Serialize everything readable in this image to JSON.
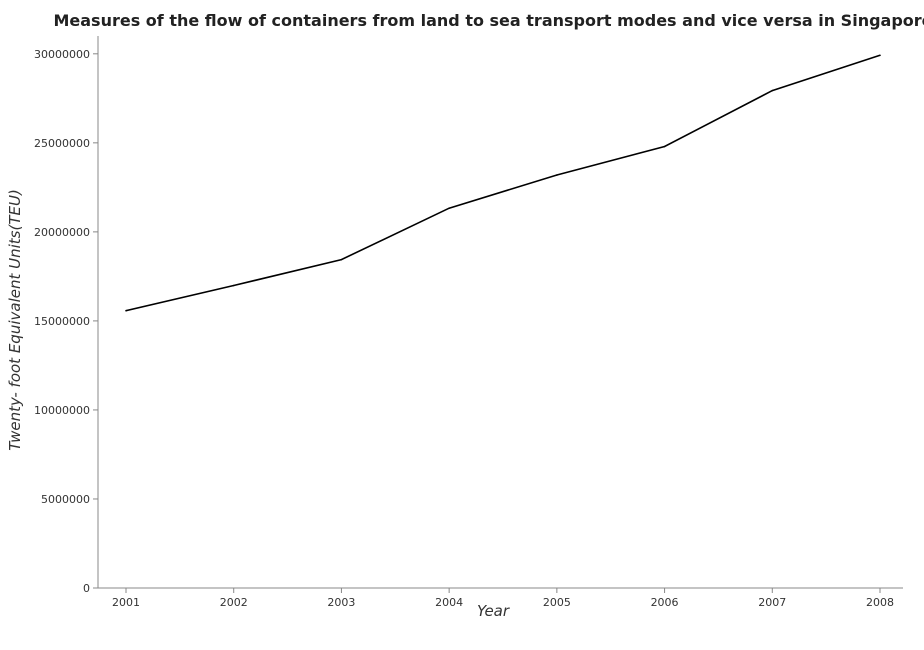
{
  "chart_data": {
    "type": "line",
    "title": "Measures of the flow of containers from land to sea transport modes and vice versa in Singapore",
    "xlabel": "Year",
    "ylabel": "Twenty- foot Equivalent Units(TEU)",
    "categories": [
      "2001",
      "2002",
      "2003",
      "2004",
      "2005",
      "2006",
      "2007",
      "2008"
    ],
    "series": [
      {
        "values": [
          15571100,
          16986000,
          18441000,
          21329100,
          23192200,
          24792400,
          27935500,
          29918200
        ]
      }
    ],
    "yticks": [
      0,
      5000000,
      10000000,
      15000000,
      20000000,
      25000000,
      30000000
    ],
    "ytick_labels": [
      "0",
      "5000000",
      "10000000",
      "15000000",
      "20000000",
      "25000000",
      "30000000"
    ],
    "ylim": [
      0,
      31000000
    ],
    "grid": false,
    "line_color": "#000000"
  }
}
